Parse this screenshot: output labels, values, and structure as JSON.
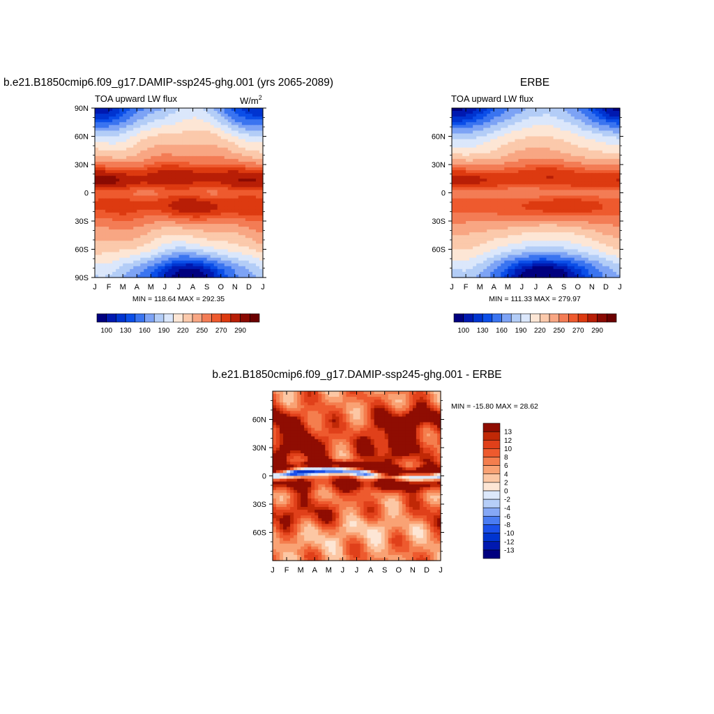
{
  "colors": {
    "abs_palette": [
      "#00007f",
      "#0019b0",
      "#0034d0",
      "#0b4ee8",
      "#3a74f0",
      "#7da3f5",
      "#b3cdf7",
      "#dbe7fb",
      "#fde6d5",
      "#fbc9ab",
      "#f8a683",
      "#f37c55",
      "#ee5a2e",
      "#dd3a10",
      "#b81e06",
      "#8a0a02",
      "#6b0000"
    ],
    "diff_palette": [
      "#00007f",
      "#0019b0",
      "#0034d0",
      "#1b50ea",
      "#4a7cf2",
      "#86a8f6",
      "#b6cef8",
      "#dce8fb",
      "#fde6d5",
      "#fcc7a4",
      "#f9a274",
      "#f47e4e",
      "#ee5a2e",
      "#e0401a",
      "#c02806",
      "#8f0d02"
    ]
  },
  "chart_data": [
    {
      "type": "heatmap",
      "title": "b.e21.B1850cmip6.f09_g17.DAMIP-ssp245-ghg.001 (yrs 2065-2089)",
      "subtitle": "TOA upward LW flux",
      "units": "W/m",
      "units_sup": "2",
      "x_ticks": [
        "J",
        "F",
        "M",
        "A",
        "M",
        "J",
        "J",
        "A",
        "S",
        "O",
        "N",
        "D",
        "J"
      ],
      "y_ticks": [
        "90N",
        "60N",
        "30N",
        "0",
        "30S",
        "60S",
        "90S"
      ],
      "ylim": [
        -90,
        90
      ],
      "min_max_text": "MIN = 118.64 MAX = 292.35",
      "min": 118.64,
      "max": 292.35,
      "colorbar_labels": [
        "100",
        "130",
        "160",
        "190",
        "220",
        "250",
        "270",
        "290"
      ],
      "pattern": "model"
    },
    {
      "type": "heatmap",
      "title": "ERBE",
      "subtitle": "TOA upward LW flux",
      "x_ticks": [
        "J",
        "F",
        "M",
        "A",
        "M",
        "J",
        "J",
        "A",
        "S",
        "O",
        "N",
        "D",
        "J"
      ],
      "y_ticks": [
        "60N",
        "30N",
        "0",
        "30S",
        "60S"
      ],
      "ylim": [
        -90,
        90
      ],
      "min_max_text": "MIN = 111.33 MAX = 279.97",
      "min": 111.33,
      "max": 279.97,
      "colorbar_labels": [
        "100",
        "130",
        "160",
        "190",
        "220",
        "250",
        "270",
        "290"
      ],
      "pattern": "obs"
    },
    {
      "type": "heatmap",
      "title": "b.e21.B1850cmip6.f09_g17.DAMIP-ssp245-ghg.001 - ERBE",
      "x_ticks": [
        "J",
        "F",
        "M",
        "A",
        "M",
        "J",
        "J",
        "A",
        "S",
        "O",
        "N",
        "D",
        "J"
      ],
      "y_ticks": [
        "60N",
        "30N",
        "0",
        "30S",
        "60S"
      ],
      "ylim": [
        -90,
        90
      ],
      "min_max_text": "MIN = -15.80 MAX =  28.62",
      "min": -15.8,
      "max": 28.62,
      "colorbar_labels": [
        "13",
        "12",
        "10",
        "8",
        "6",
        "4",
        "2",
        "0",
        "-2",
        "-4",
        "-6",
        "-8",
        "-10",
        "-12",
        "-13"
      ],
      "pattern": "diff"
    }
  ]
}
